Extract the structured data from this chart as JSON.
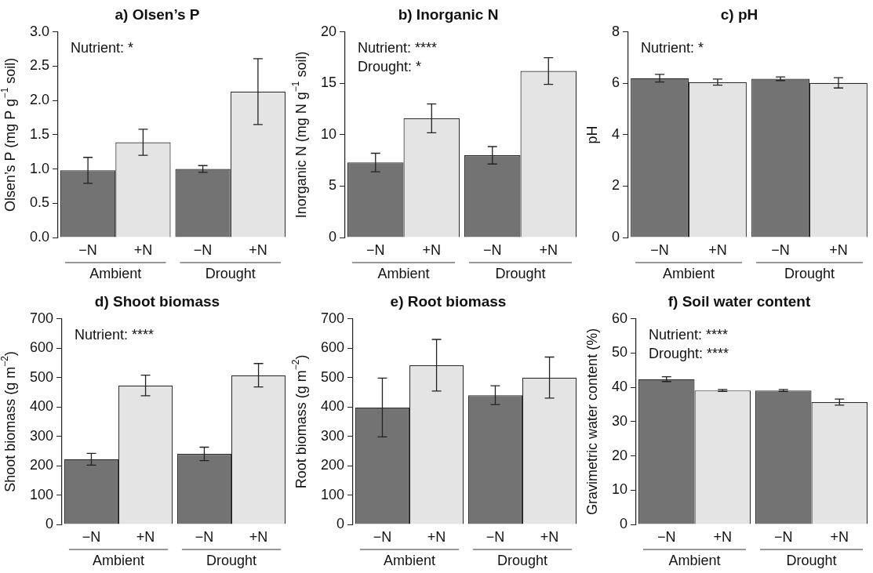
{
  "chart_data": [
    {
      "type": "bar",
      "title": "a) Olsen’s P",
      "ylabel": "Olsen’s P (mg P g$^{−1}$ soil)",
      "categories": [
        "Ambient",
        "Drought"
      ],
      "series": [
        {
          "name": "−N",
          "color": "#737373",
          "values": [
            0.98,
            1.0
          ],
          "errors": [
            0.19,
            0.05
          ]
        },
        {
          "name": "+N",
          "color": "#e4e4e4",
          "values": [
            1.39,
            2.13
          ],
          "errors": [
            0.19,
            0.48
          ]
        }
      ],
      "ylim": [
        0,
        3
      ],
      "yticks": [
        {
          "value": 0,
          "label": "0.0"
        },
        {
          "value": 0.5,
          "label": "0.5"
        },
        {
          "value": 1,
          "label": "1.0"
        },
        {
          "value": 1.5,
          "label": "1.5"
        },
        {
          "value": 2,
          "label": "2.0"
        },
        {
          "value": 2.5,
          "label": "2.5"
        },
        {
          "value": 3,
          "label": "3.0"
        }
      ],
      "annotations": [
        "Nutrient: *"
      ]
    },
    {
      "type": "bar",
      "title": "b) Inorganic N",
      "ylabel": "Inorganic N (mg N g$^{−1}$ soil)",
      "categories": [
        "Ambient",
        "Drought"
      ],
      "series": [
        {
          "name": "−N",
          "color": "#737373",
          "values": [
            7.3,
            8.0
          ],
          "errors": [
            0.9,
            0.85
          ]
        },
        {
          "name": "+N",
          "color": "#e4e4e4",
          "values": [
            11.6,
            16.2
          ],
          "errors": [
            1.4,
            1.3
          ]
        }
      ],
      "ylim": [
        0,
        20
      ],
      "yticks": [
        0,
        5,
        10,
        15,
        20
      ],
      "annotations": [
        "Nutrient: ****",
        "Drought: *"
      ]
    },
    {
      "type": "bar",
      "title": "c) pH",
      "ylabel": "pH",
      "categories": [
        "Ambient",
        "Drought"
      ],
      "series": [
        {
          "name": "−N",
          "color": "#737373",
          "values": [
            6.2,
            6.18
          ],
          "errors": [
            0.15,
            0.07
          ]
        },
        {
          "name": "+N",
          "color": "#e4e4e4",
          "values": [
            6.05,
            6.02
          ],
          "errors": [
            0.12,
            0.2
          ]
        }
      ],
      "ylim": [
        0,
        8
      ],
      "yticks": [
        0,
        2,
        4,
        6,
        8
      ],
      "annotations": [
        "Nutrient: *"
      ]
    },
    {
      "type": "bar",
      "title": "d) Shoot biomass",
      "ylabel": "Shoot biomass (g m$^{−2}$)",
      "categories": [
        "Ambient",
        "Drought"
      ],
      "series": [
        {
          "name": "−N",
          "color": "#737373",
          "values": [
            222,
            240
          ],
          "errors": [
            20,
            23
          ]
        },
        {
          "name": "+N",
          "color": "#e4e4e4",
          "values": [
            473,
            508
          ],
          "errors": [
            35,
            40
          ]
        }
      ],
      "ylim": [
        0,
        700
      ],
      "yticks": [
        0,
        100,
        200,
        300,
        400,
        500,
        600,
        700
      ],
      "annotations": [
        "Nutrient: ****"
      ]
    },
    {
      "type": "bar",
      "title": "e) Root biomass",
      "ylabel": "Root biomass (g m$^{−2}$)",
      "categories": [
        "Ambient",
        "Drought"
      ],
      "series": [
        {
          "name": "−N",
          "color": "#737373",
          "values": [
            398,
            440
          ],
          "errors": [
            100,
            32
          ]
        },
        {
          "name": "+N",
          "color": "#e4e4e4",
          "values": [
            542,
            500
          ],
          "errors": [
            88,
            70
          ]
        }
      ],
      "ylim": [
        0,
        700
      ],
      "yticks": [
        0,
        100,
        200,
        300,
        400,
        500,
        600,
        700
      ]
    },
    {
      "type": "bar",
      "title": "f) Soil water content",
      "ylabel": "Gravimetric water content (%)",
      "categories": [
        "Ambient",
        "Drought"
      ],
      "series": [
        {
          "name": "−N",
          "color": "#737373",
          "values": [
            42.4,
            39.1
          ],
          "errors": [
            0.7,
            0.3
          ]
        },
        {
          "name": "+N",
          "color": "#e4e4e4",
          "values": [
            39.1,
            35.7
          ],
          "errors": [
            0.3,
            0.9
          ]
        }
      ],
      "ylim": [
        0,
        60
      ],
      "yticks": [
        0,
        10,
        20,
        30,
        40,
        50,
        60
      ],
      "annotations": [
        "Nutrient: ****",
        "Drought: ****"
      ]
    }
  ]
}
